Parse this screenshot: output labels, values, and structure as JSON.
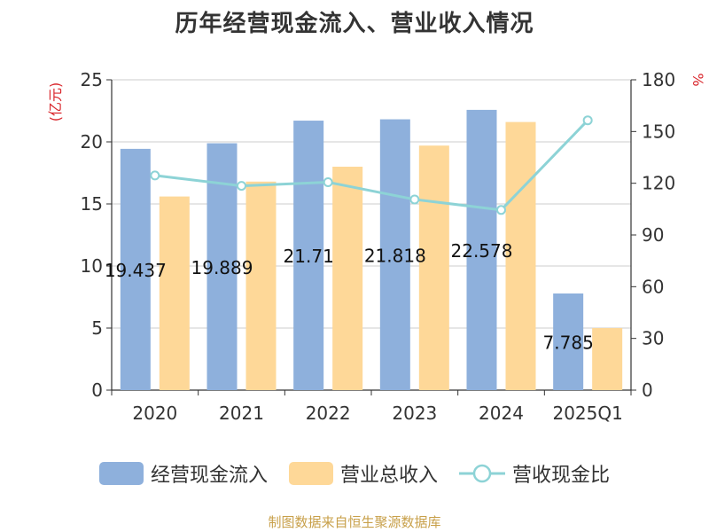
{
  "title": "历年经营现金流入、营业收入情况",
  "source": "制图数据来自恒生聚源数据库",
  "chart_data": {
    "type": "bar",
    "categories": [
      "2020",
      "2021",
      "2022",
      "2023",
      "2024",
      "2025Q1"
    ],
    "y_left_label": "(亿元)",
    "y_right_label": "%",
    "y_left_lim": [
      0,
      25
    ],
    "y_left_ticks": [
      "0",
      "5",
      "10",
      "15",
      "20",
      "25"
    ],
    "y_right_lim": [
      0,
      180
    ],
    "y_right_ticks": [
      "0",
      "30",
      "60",
      "90",
      "120",
      "150",
      "180"
    ],
    "grid": true,
    "legend_position": "bottom",
    "series": [
      {
        "name": "经营现金流入",
        "type": "bar",
        "axis": "left",
        "color": "#8eb0dc",
        "values": [
          19.437,
          19.889,
          21.71,
          21.818,
          22.578,
          7.785
        ],
        "data_labels": [
          "19.437",
          "19.889",
          "21.71",
          "21.818",
          "22.578",
          "7.785"
        ]
      },
      {
        "name": "营业总收入",
        "type": "bar",
        "axis": "left",
        "color": "#fed898",
        "values": [
          15.6,
          16.8,
          18.0,
          19.7,
          21.6,
          5.0
        ]
      },
      {
        "name": "营收现金比",
        "type": "line",
        "axis": "right",
        "color": "#8dd3d6",
        "values": [
          124.5,
          118.5,
          120.6,
          110.6,
          104.5,
          156.5
        ]
      }
    ]
  }
}
